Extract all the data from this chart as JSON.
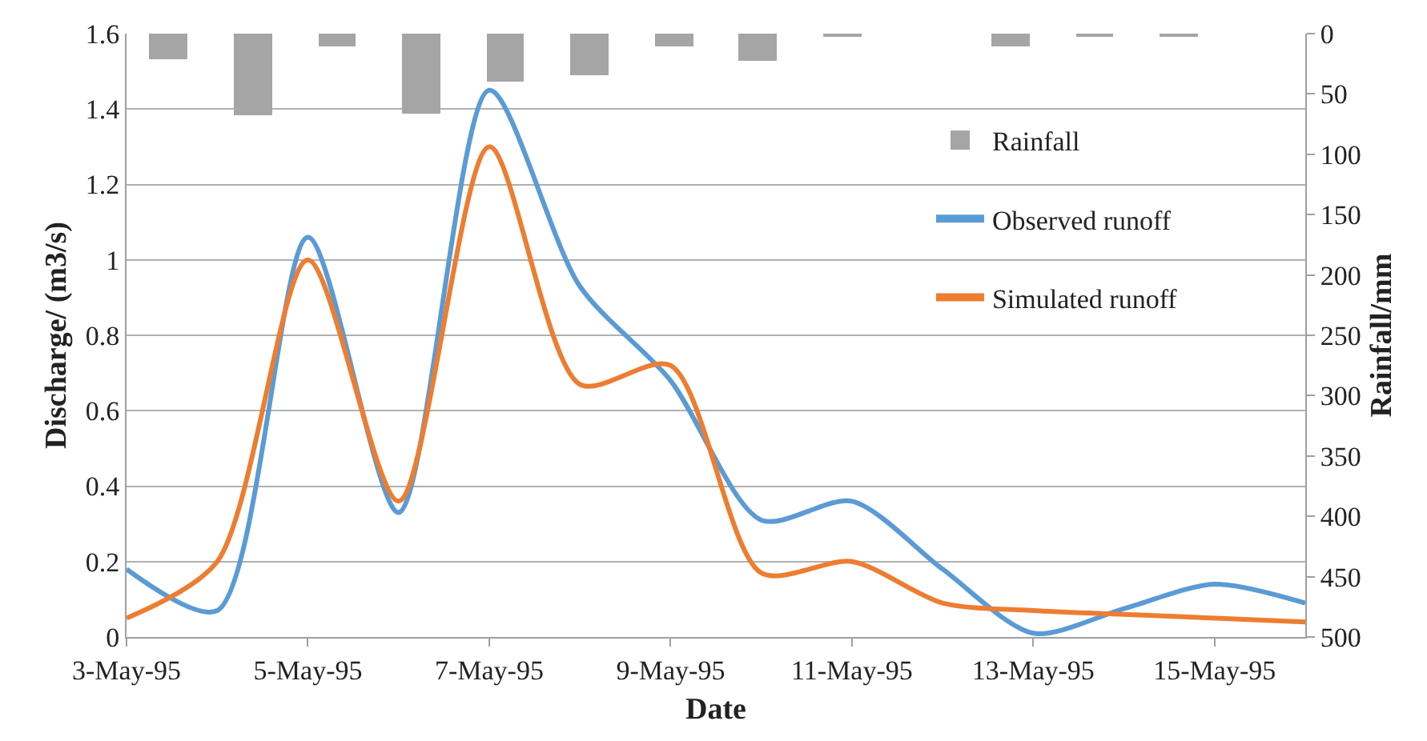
{
  "chart_data": {
    "type": "line",
    "xlabel": "Date",
    "ylabel": "Discharge/ (m3/s)",
    "y2label": "Rainfall/mm",
    "x": [
      "1995-05-03",
      "1995-05-04",
      "1995-05-05",
      "1995-05-06",
      "1995-05-07",
      "1995-05-08",
      "1995-05-09",
      "1995-05-10",
      "1995-05-11",
      "1995-05-12",
      "1995-05-13",
      "1995-05-14",
      "1995-05-15",
      "1995-05-16"
    ],
    "series": [
      {
        "name": "Rainfall",
        "type": "bar",
        "axis": "y2",
        "color": "#a5a5a5",
        "x": [
          "1995-05-03T11:09",
          "1995-05-04T09:26",
          "1995-05-05T07:43",
          "1995-05-06T06:00",
          "1995-05-07T04:17",
          "1995-05-08T02:34",
          "1995-05-09T00:51",
          "1995-05-09T23:09",
          "1995-05-10T21:26",
          "1995-05-11T19:43",
          "1995-05-12T18:00",
          "1995-05-13T16:17",
          "1995-05-14T14:34",
          "1995-05-15T12:51"
        ],
        "values": [
          21,
          68,
          11,
          66,
          40,
          34,
          10,
          23,
          3,
          0,
          10,
          2,
          3,
          0
        ]
      },
      {
        "name": "Observed runoff",
        "color": "#5b9bd5",
        "values": [
          0.18,
          0.07,
          1.06,
          0.33,
          1.45,
          0.93,
          0.68,
          0.31,
          0.36,
          0.18,
          0.01,
          0.075,
          0.14,
          0.09
        ]
      },
      {
        "name": "Simulated runoff",
        "color": "#ed7d31",
        "values": [
          0.05,
          0.2,
          1.0,
          0.36,
          1.3,
          0.67,
          0.72,
          0.17,
          0.2,
          0.09,
          0.07,
          0.06,
          0.05,
          0.04
        ]
      }
    ],
    "xlim": [
      "1995-05-03",
      "1995-05-16"
    ],
    "xticks": [
      {
        "value": "1995-05-03",
        "label": "3-May-95"
      },
      {
        "value": "1995-05-05",
        "label": "5-May-95"
      },
      {
        "value": "1995-05-07",
        "label": "7-May-95"
      },
      {
        "value": "1995-05-09",
        "label": "9-May-95"
      },
      {
        "value": "1995-05-11",
        "label": "11-May-95"
      },
      {
        "value": "1995-05-13",
        "label": "13-May-95"
      },
      {
        "value": "1995-05-15",
        "label": "15-May-95"
      }
    ],
    "ylim": [
      0,
      1.6
    ],
    "yticks": [
      0,
      0.2,
      0.4,
      0.6,
      0.8,
      1,
      1.2,
      1.4,
      1.6
    ],
    "y2lim": [
      500,
      0
    ],
    "y2ticks": [
      0,
      50,
      100,
      150,
      200,
      250,
      300,
      350,
      400,
      450,
      500
    ],
    "grid": "y",
    "legend": "right",
    "marker": "none",
    "line_style": "solid"
  }
}
